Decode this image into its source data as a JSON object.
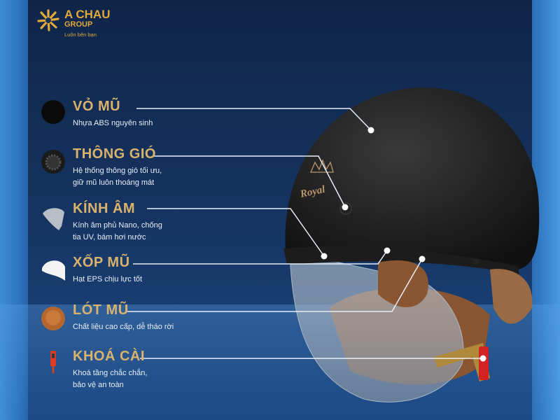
{
  "brand": {
    "name": "A CHAU",
    "group": "GROUP",
    "tagline": "Luôn bên bạn",
    "color": "#e0a93c"
  },
  "helmet": {
    "logo_text": "Royal"
  },
  "features": [
    {
      "title": "VỎ MŨ",
      "desc": [
        "Nhựa ABS nguyên sinh"
      ],
      "icon": "helmet-shell-icon"
    },
    {
      "title": "THÔNG GIÓ",
      "desc": [
        "Hệ thống thông gió tối ưu,",
        "giữ mũ luôn thoáng mát"
      ],
      "icon": "vent-icon"
    },
    {
      "title": "KÍNH ÂM",
      "desc": [
        "Kính âm phủ Nano, chống",
        "tia UV, bám hơi nước"
      ],
      "icon": "visor-icon"
    },
    {
      "title": "XỐP MŨ",
      "desc": [
        "Hạt EPS chịu lực tốt"
      ],
      "icon": "foam-icon"
    },
    {
      "title": "LÓT MŨ",
      "desc": [
        "Chất liệu cao cấp, dễ tháo rời"
      ],
      "icon": "liner-icon"
    },
    {
      "title": "KHOÁ CÀI",
      "desc": [
        "Khoá tầng chắc chắn,",
        "bảo vệ an toàn"
      ],
      "icon": "buckle-icon"
    }
  ],
  "colors": {
    "title": "#d9b36d",
    "background": "#142f5a"
  }
}
